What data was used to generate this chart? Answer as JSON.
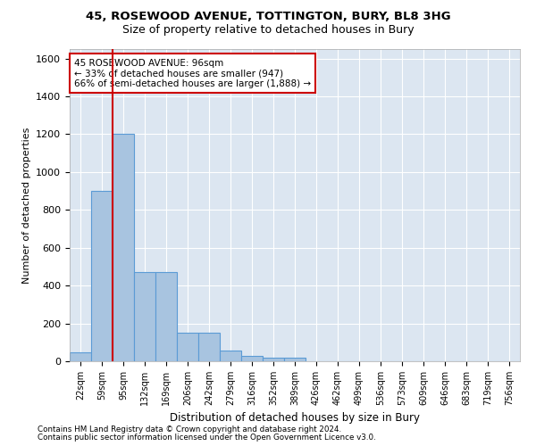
{
  "title_line1": "45, ROSEWOOD AVENUE, TOTTINGTON, BURY, BL8 3HG",
  "title_line2": "Size of property relative to detached houses in Bury",
  "xlabel": "Distribution of detached houses by size in Bury",
  "ylabel": "Number of detached properties",
  "bar_values": [
    45,
    900,
    1200,
    470,
    470,
    150,
    150,
    55,
    30,
    20,
    20,
    0,
    0,
    0,
    0,
    0,
    0,
    0,
    0,
    0,
    0
  ],
  "bin_labels": [
    "22sqm",
    "59sqm",
    "95sqm",
    "132sqm",
    "169sqm",
    "206sqm",
    "242sqm",
    "279sqm",
    "316sqm",
    "352sqm",
    "389sqm",
    "426sqm",
    "462sqm",
    "499sqm",
    "536sqm",
    "573sqm",
    "609sqm",
    "646sqm",
    "683sqm",
    "719sqm",
    "756sqm"
  ],
  "bar_color": "#a8c4e0",
  "bar_edge_color": "#5b9bd5",
  "background_color": "#dce6f1",
  "grid_color": "#ffffff",
  "vline_x_index": 2,
  "vline_color": "#cc0000",
  "annotation_text": "45 ROSEWOOD AVENUE: 96sqm\n← 33% of detached houses are smaller (947)\n66% of semi-detached houses are larger (1,888) →",
  "annotation_box_color": "#ffffff",
  "annotation_box_edge_color": "#cc0000",
  "ylim": [
    0,
    1650
  ],
  "yticks": [
    0,
    200,
    400,
    600,
    800,
    1000,
    1200,
    1400,
    1600
  ],
  "footer_line1": "Contains HM Land Registry data © Crown copyright and database right 2024.",
  "footer_line2": "Contains public sector information licensed under the Open Government Licence v3.0."
}
